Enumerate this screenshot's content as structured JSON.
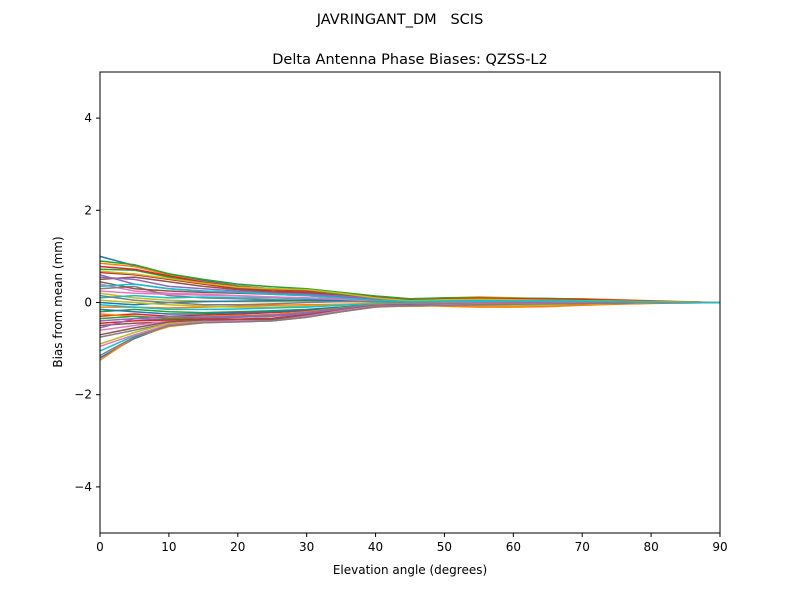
{
  "chart_data": {
    "type": "line",
    "suptitle": "JAVRINGANT_DM   SCIS",
    "title": "Delta Antenna Phase Biases: QZSS-L2",
    "xlabel": "Elevation angle (degrees)",
    "ylabel": "Bias from mean (mm)",
    "xlim": [
      0,
      90
    ],
    "ylim": [
      -5,
      5
    ],
    "xticks": [
      0,
      10,
      20,
      30,
      40,
      50,
      60,
      70,
      80,
      90
    ],
    "yticks": [
      -4,
      -2,
      0,
      2,
      4
    ],
    "ytick_labels": [
      "−4",
      "−2",
      "0",
      "2",
      "4"
    ],
    "grid": false,
    "colors": [
      "#1f77b4",
      "#ff7f0e",
      "#2ca02c",
      "#d62728",
      "#9467bd",
      "#8c564b",
      "#e377c2",
      "#7f7f7f",
      "#bcbd22",
      "#17becf"
    ],
    "x": [
      0,
      5,
      10,
      15,
      20,
      25,
      30,
      35,
      40,
      45,
      50,
      55,
      60,
      65,
      70,
      75,
      80,
      85,
      90
    ],
    "series": [
      {
        "values": [
          1.0,
          0.8,
          0.62,
          0.48,
          0.36,
          0.3,
          0.25,
          0.18,
          0.1,
          0.05,
          0.05,
          0.08,
          0.06,
          0.05,
          0.04,
          0.03,
          0.02,
          0.01,
          0
        ]
      },
      {
        "values": [
          0.85,
          0.78,
          0.6,
          0.45,
          0.35,
          0.3,
          0.28,
          0.2,
          0.12,
          0.06,
          0.1,
          0.12,
          0.1,
          0.08,
          0.08,
          0.06,
          0.04,
          0.02,
          0
        ]
      },
      {
        "values": [
          0.72,
          0.7,
          0.55,
          0.42,
          0.32,
          0.28,
          0.25,
          0.18,
          0.1,
          0.02,
          0.04,
          0.06,
          0.05,
          0.04,
          0.03,
          0.03,
          0.02,
          0.01,
          0
        ]
      },
      {
        "values": [
          0.65,
          0.6,
          0.5,
          0.4,
          0.3,
          0.25,
          0.22,
          0.15,
          0.08,
          0,
          -0.02,
          0,
          0.02,
          0.02,
          0.01,
          0.01,
          0.01,
          0,
          0
        ]
      },
      {
        "values": [
          0.6,
          0.4,
          0.3,
          0.25,
          0.22,
          0.2,
          0.18,
          0.12,
          0.06,
          0.02,
          0.05,
          0.08,
          0.07,
          0.06,
          0.05,
          0.04,
          0.02,
          0.01,
          0
        ]
      },
      {
        "values": [
          0.5,
          0.55,
          0.45,
          0.35,
          0.28,
          0.22,
          0.2,
          0.14,
          0.06,
          -0.02,
          -0.04,
          -0.03,
          -0.02,
          0,
          0,
          0.01,
          0.01,
          0,
          0
        ]
      },
      {
        "values": [
          0.4,
          0.25,
          0.2,
          0.18,
          0.15,
          0.12,
          0.1,
          0.08,
          0.04,
          0,
          0.02,
          0.04,
          0.03,
          0.03,
          0.02,
          0.02,
          0.01,
          0,
          0
        ]
      },
      {
        "values": [
          0.3,
          0.35,
          0.15,
          0.1,
          0.08,
          0.06,
          0.05,
          0.04,
          0.02,
          -0.03,
          -0.05,
          -0.06,
          -0.05,
          -0.04,
          -0.03,
          -0.02,
          -0.01,
          0,
          0
        ]
      },
      {
        "values": [
          0.2,
          0.1,
          0.05,
          0.03,
          0.02,
          0.02,
          0.03,
          0.02,
          0.01,
          -0.04,
          -0.06,
          -0.08,
          -0.08,
          -0.07,
          -0.05,
          -0.03,
          -0.02,
          -0.01,
          0
        ]
      },
      {
        "values": [
          0.1,
          0.15,
          0.1,
          0.12,
          0.1,
          0.1,
          0.08,
          0.06,
          0.04,
          0.03,
          0.02,
          0,
          0.01,
          0.02,
          0.02,
          0.01,
          0,
          0,
          0
        ]
      },
      {
        "values": [
          0,
          -0.05,
          0,
          0.02,
          0.03,
          0.04,
          0.05,
          0.04,
          0.02,
          -0.02,
          -0.03,
          -0.04,
          -0.04,
          -0.03,
          -0.02,
          -0.01,
          0,
          0,
          0
        ]
      },
      {
        "values": [
          -0.1,
          -0.1,
          -0.12,
          -0.1,
          -0.08,
          -0.06,
          -0.05,
          -0.04,
          -0.02,
          -0.05,
          -0.08,
          -0.1,
          -0.1,
          -0.09,
          -0.06,
          -0.04,
          -0.02,
          -0.01,
          0
        ]
      },
      {
        "values": [
          -0.2,
          -0.15,
          -0.2,
          -0.22,
          -0.2,
          -0.18,
          -0.15,
          -0.1,
          -0.05,
          -0.04,
          -0.02,
          0,
          0.02,
          0.03,
          0.02,
          0.02,
          0.01,
          0,
          0
        ]
      },
      {
        "values": [
          -0.3,
          -0.25,
          -0.3,
          -0.28,
          -0.25,
          -0.22,
          -0.18,
          -0.12,
          -0.06,
          -0.05,
          -0.03,
          -0.02,
          -0.01,
          0,
          0,
          0,
          0,
          0,
          0
        ]
      },
      {
        "values": [
          -0.4,
          -0.35,
          -0.38,
          -0.35,
          -0.32,
          -0.3,
          -0.25,
          -0.15,
          -0.06,
          -0.06,
          -0.05,
          -0.04,
          -0.03,
          -0.03,
          -0.02,
          -0.01,
          -0.01,
          0,
          0
        ]
      },
      {
        "values": [
          -0.5,
          -0.45,
          -0.42,
          -0.4,
          -0.38,
          -0.38,
          -0.3,
          -0.18,
          -0.08,
          -0.08,
          -0.06,
          -0.05,
          -0.05,
          -0.04,
          -0.03,
          -0.02,
          -0.01,
          0,
          0
        ]
      },
      {
        "values": [
          -0.6,
          -0.5,
          -0.4,
          -0.4,
          -0.4,
          -0.38,
          -0.3,
          -0.2,
          -0.08,
          -0.04,
          -0.02,
          0,
          0,
          0.01,
          0.01,
          0,
          0,
          0,
          0
        ]
      },
      {
        "values": [
          -0.75,
          -0.6,
          -0.45,
          -0.42,
          -0.42,
          -0.4,
          -0.32,
          -0.2,
          -0.1,
          -0.07,
          -0.05,
          -0.05,
          -0.04,
          -0.03,
          -0.02,
          -0.02,
          -0.01,
          0,
          0
        ]
      },
      {
        "values": [
          -0.9,
          -0.65,
          -0.45,
          -0.4,
          -0.4,
          -0.38,
          -0.3,
          -0.18,
          -0.07,
          -0.05,
          -0.04,
          -0.03,
          -0.02,
          -0.02,
          -0.01,
          -0.01,
          0,
          0,
          0
        ]
      },
      {
        "values": [
          -1.05,
          -0.72,
          -0.48,
          -0.42,
          -0.4,
          -0.38,
          -0.3,
          -0.18,
          -0.08,
          -0.06,
          -0.05,
          -0.04,
          -0.03,
          -0.02,
          -0.02,
          -0.01,
          -0.01,
          0,
          0
        ]
      },
      {
        "values": [
          -1.2,
          -0.78,
          -0.5,
          -0.42,
          -0.4,
          -0.38,
          -0.3,
          -0.18,
          -0.08,
          -0.06,
          -0.06,
          -0.05,
          -0.04,
          -0.03,
          -0.02,
          -0.01,
          0,
          0,
          0
        ]
      },
      {
        "values": [
          -1.25,
          -0.75,
          -0.52,
          -0.44,
          -0.42,
          -0.4,
          -0.32,
          -0.2,
          -0.09,
          -0.08,
          -0.07,
          -0.06,
          -0.05,
          -0.04,
          -0.03,
          -0.02,
          -0.01,
          0,
          0
        ]
      },
      {
        "values": [
          0.9,
          0.82,
          0.62,
          0.5,
          0.4,
          0.34,
          0.3,
          0.22,
          0.14,
          0.08,
          0.1,
          0.1,
          0.09,
          0.09,
          0.07,
          0.05,
          0.03,
          0.01,
          0
        ]
      },
      {
        "values": [
          0.78,
          0.72,
          0.58,
          0.44,
          0.34,
          0.29,
          0.26,
          0.2,
          0.11,
          0.05,
          0.07,
          0.09,
          0.08,
          0.07,
          0.06,
          0.05,
          0.03,
          0.01,
          0
        ]
      },
      {
        "values": [
          0.55,
          0.5,
          0.35,
          0.3,
          0.25,
          0.2,
          0.18,
          0.14,
          0.08,
          0.03,
          0.04,
          0.05,
          0.05,
          0.05,
          0.04,
          0.03,
          0.02,
          0.01,
          0
        ]
      },
      {
        "values": [
          0.45,
          0.3,
          0.25,
          0.22,
          0.2,
          0.18,
          0.15,
          0.1,
          0.05,
          0.01,
          0,
          0.02,
          0.03,
          0.03,
          0.02,
          0.02,
          0.01,
          0,
          0
        ]
      },
      {
        "values": [
          0.25,
          0.2,
          0.18,
          0.16,
          0.14,
          0.12,
          0.1,
          0.07,
          0.03,
          -0.01,
          0,
          0.01,
          0.02,
          0.02,
          0.02,
          0.01,
          0.01,
          0,
          0
        ]
      },
      {
        "values": [
          0.15,
          0.05,
          0,
          -0.05,
          -0.05,
          -0.03,
          0,
          0.02,
          0.02,
          0,
          -0.01,
          -0.02,
          -0.02,
          -0.01,
          -0.01,
          0,
          0,
          0,
          0
        ]
      },
      {
        "values": [
          0.05,
          0,
          -0.05,
          -0.08,
          -0.1,
          -0.1,
          -0.08,
          -0.05,
          -0.02,
          -0.03,
          -0.04,
          -0.05,
          -0.05,
          -0.04,
          -0.03,
          -0.02,
          -0.01,
          0,
          0
        ]
      },
      {
        "values": [
          -0.05,
          -0.1,
          -0.15,
          -0.15,
          -0.14,
          -0.12,
          -0.1,
          -0.06,
          -0.03,
          -0.02,
          -0.01,
          0.01,
          0.02,
          0.02,
          0.01,
          0.01,
          0,
          0,
          0
        ]
      },
      {
        "values": [
          -0.15,
          -0.2,
          -0.25,
          -0.25,
          -0.22,
          -0.2,
          -0.16,
          -0.1,
          -0.05,
          -0.04,
          -0.03,
          -0.02,
          -0.01,
          -0.01,
          0,
          0,
          0,
          0,
          0
        ]
      },
      {
        "values": [
          -0.25,
          -0.3,
          -0.33,
          -0.3,
          -0.28,
          -0.26,
          -0.2,
          -0.12,
          -0.05,
          -0.03,
          -0.02,
          -0.01,
          0,
          0,
          0,
          0,
          0,
          0,
          0
        ]
      },
      {
        "values": [
          -0.35,
          -0.3,
          -0.35,
          -0.32,
          -0.3,
          -0.28,
          -0.22,
          -0.13,
          -0.06,
          -0.05,
          -0.04,
          -0.03,
          -0.02,
          -0.02,
          -0.01,
          -0.01,
          0,
          0,
          0
        ]
      },
      {
        "values": [
          -0.45,
          -0.4,
          -0.38,
          -0.36,
          -0.36,
          -0.34,
          -0.27,
          -0.16,
          -0.07,
          -0.06,
          -0.04,
          -0.03,
          -0.03,
          -0.02,
          -0.02,
          -0.01,
          0,
          0,
          0
        ]
      },
      {
        "values": [
          -0.55,
          -0.35,
          -0.3,
          -0.32,
          -0.3,
          -0.28,
          -0.22,
          -0.14,
          -0.06,
          -0.04,
          -0.03,
          -0.02,
          -0.01,
          0,
          0,
          0,
          0,
          0,
          0
        ]
      },
      {
        "values": [
          -0.7,
          -0.55,
          -0.42,
          -0.38,
          -0.38,
          -0.36,
          -0.28,
          -0.17,
          -0.07,
          -0.06,
          -0.05,
          -0.04,
          -0.03,
          -0.02,
          -0.02,
          -0.01,
          0,
          0,
          0
        ]
      },
      {
        "values": [
          -0.95,
          -0.7,
          -0.48,
          -0.42,
          -0.4,
          -0.4,
          -0.3,
          -0.18,
          -0.08,
          -0.07,
          -0.05,
          -0.04,
          -0.03,
          -0.02,
          -0.01,
          -0.01,
          0,
          0,
          0
        ]
      },
      {
        "values": [
          -1.15,
          -0.75,
          -0.5,
          -0.44,
          -0.42,
          -0.4,
          -0.32,
          -0.2,
          -0.09,
          -0.07,
          -0.06,
          -0.05,
          -0.04,
          -0.03,
          -0.02,
          -0.01,
          0,
          0,
          0
        ]
      },
      {
        "values": [
          0.68,
          0.62,
          0.52,
          0.42,
          0.33,
          0.3,
          0.28,
          0.2,
          0.1,
          0.04,
          0.06,
          0.07,
          0.06,
          0.05,
          0.04,
          0.03,
          0.02,
          0.01,
          0
        ]
      },
      {
        "values": [
          0.35,
          0.4,
          0.3,
          0.25,
          0.22,
          0.18,
          0.15,
          0.1,
          0.05,
          0.02,
          0.03,
          0.04,
          0.04,
          0.04,
          0.03,
          0.02,
          0.01,
          0,
          0
        ]
      }
    ]
  }
}
